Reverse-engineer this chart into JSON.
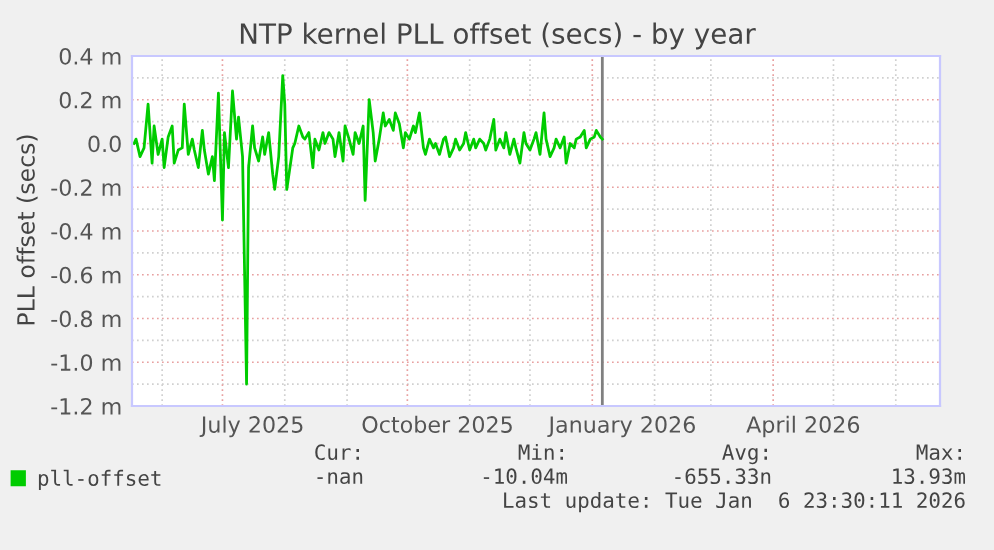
{
  "chart_data": {
    "type": "line",
    "title": "NTP kernel PLL offset (secs) - by year",
    "ylabel": "PLL offset (secs)",
    "x": [
      "2025-05-18",
      "2025-05-19",
      "2025-05-21",
      "2025-05-23",
      "2025-05-25",
      "2025-05-27",
      "2025-05-28",
      "2025-05-30",
      "2025-06-01",
      "2025-06-02",
      "2025-06-04",
      "2025-06-06",
      "2025-06-07",
      "2025-06-09",
      "2025-06-11",
      "2025-06-12",
      "2025-06-14",
      "2025-06-16",
      "2025-06-17",
      "2025-06-19",
      "2025-06-21",
      "2025-06-22",
      "2025-06-24",
      "2025-06-26",
      "2025-06-27",
      "2025-06-29",
      "2025-07-01",
      "2025-07-02",
      "2025-07-04",
      "2025-07-06",
      "2025-07-08",
      "2025-07-09",
      "2025-07-11",
      "2025-07-13",
      "2025-07-14",
      "2025-07-16",
      "2025-07-17",
      "2025-07-19",
      "2025-07-21",
      "2025-07-22",
      "2025-07-24",
      "2025-07-26",
      "2025-07-27",
      "2025-07-29",
      "2025-07-31",
      "2025-08-01",
      "2025-08-02",
      "2025-08-05",
      "2025-08-06",
      "2025-08-08",
      "2025-08-10",
      "2025-08-11",
      "2025-08-13",
      "2025-08-15",
      "2025-08-16",
      "2025-08-18",
      "2025-08-20",
      "2025-08-21",
      "2025-08-23",
      "2025-08-25",
      "2025-08-26",
      "2025-08-28",
      "2025-08-30",
      "2025-08-31",
      "2025-09-02",
      "2025-09-04",
      "2025-09-05",
      "2025-09-07",
      "2025-09-09",
      "2025-09-10",
      "2025-09-12",
      "2025-09-14",
      "2025-09-15",
      "2025-09-17",
      "2025-09-19",
      "2025-09-20",
      "2025-09-22",
      "2025-09-24",
      "2025-09-25",
      "2025-09-27",
      "2025-09-29",
      "2025-09-30",
      "2025-10-02",
      "2025-10-04",
      "2025-10-05",
      "2025-10-07",
      "2025-10-09",
      "2025-10-10",
      "2025-10-12",
      "2025-10-14",
      "2025-10-15",
      "2025-10-17",
      "2025-10-19",
      "2025-10-20",
      "2025-10-22",
      "2025-10-24",
      "2025-10-25",
      "2025-10-27",
      "2025-10-29",
      "2025-10-30",
      "2025-11-01",
      "2025-11-03",
      "2025-11-04",
      "2025-11-06",
      "2025-11-08",
      "2025-11-09",
      "2025-11-11",
      "2025-11-13",
      "2025-11-14",
      "2025-11-16",
      "2025-11-18",
      "2025-11-19",
      "2025-11-21",
      "2025-11-23",
      "2025-11-24",
      "2025-11-26",
      "2025-11-28",
      "2025-11-29",
      "2025-12-01",
      "2025-12-03",
      "2025-12-04",
      "2025-12-06",
      "2025-12-08",
      "2025-12-09",
      "2025-12-11",
      "2025-12-13",
      "2025-12-14",
      "2025-12-16",
      "2025-12-18",
      "2025-12-19",
      "2025-12-21",
      "2025-12-23",
      "2025-12-24",
      "2025-12-26",
      "2025-12-28",
      "2025-12-29",
      "2025-12-31",
      "2026-01-02",
      "2026-01-03",
      "2026-01-05",
      "2026-01-06"
    ],
    "series": [
      {
        "name": "pll-offset",
        "color": "#00cc00",
        "values": [
          0,
          0.02,
          -0.06,
          -0.02,
          0.18,
          -0.09,
          0.08,
          -0.05,
          0.02,
          -0.11,
          0.03,
          0.08,
          -0.09,
          -0.03,
          -0.02,
          0.18,
          -0.05,
          0.02,
          -0.03,
          -0.11,
          0.06,
          -0.03,
          -0.14,
          -0.06,
          -0.17,
          0.23,
          -0.35,
          0.05,
          -0.11,
          0.24,
          0.02,
          0.12,
          -0.06,
          -1.1,
          -0.11,
          0.08,
          -0.02,
          -0.08,
          0.03,
          -0.05,
          0.05,
          -0.14,
          -0.21,
          -0.06,
          0.31,
          0.18,
          -0.21,
          -0.02,
          0,
          0.08,
          0.03,
          0.02,
          0.05,
          -0.11,
          0.02,
          -0.03,
          0.05,
          0,
          0.05,
          0.02,
          -0.06,
          0.05,
          -0.08,
          0.08,
          0.02,
          -0.05,
          0.05,
          0,
          0.08,
          -0.26,
          0.2,
          0.05,
          -0.08,
          0.02,
          0.14,
          0.08,
          0.11,
          0.06,
          0.14,
          0.09,
          -0.02,
          0.05,
          0.02,
          0.08,
          0.05,
          0.14,
          -0.02,
          -0.05,
          0.02,
          -0.02,
          0,
          -0.05,
          0.02,
          0.03,
          -0.06,
          -0.02,
          0.02,
          -0.03,
          0,
          0.05,
          -0.03,
          0.02,
          -0.02,
          0.02,
          0,
          -0.03,
          0.02,
          0.11,
          -0.03,
          0.02,
          -0.02,
          0.05,
          -0.05,
          0.02,
          -0.02,
          -0.09,
          0.05,
          0,
          -0.03,
          0.02,
          0.05,
          -0.05,
          0.14,
          0.02,
          -0.06,
          -0.02,
          0.02,
          -0.02,
          0.03,
          -0.09,
          0,
          -0.02,
          0.02,
          0.03,
          0.06,
          -0.02,
          0.02,
          0.03,
          0.06,
          0.03,
          0.02
        ]
      }
    ],
    "xlim": [
      "2025-05-17",
      "2026-06-23"
    ],
    "xticks": [
      {
        "value": "2025-07-16",
        "label": "July 2025"
      },
      {
        "value": "2025-10-16",
        "label": "October 2025"
      },
      {
        "value": "2026-01-16",
        "label": "January 2026"
      },
      {
        "value": "2026-04-16",
        "label": "April 2026"
      }
    ],
    "ylim": [
      -1.2,
      0.4
    ],
    "yticks": [
      {
        "value": 0.4,
        "label": "0.4 m"
      },
      {
        "value": 0.2,
        "label": "0.2 m"
      },
      {
        "value": 0,
        "label": "0.0"
      },
      {
        "value": -0.2,
        "label": "-0.2 m"
      },
      {
        "value": -0.4,
        "label": "-0.4 m"
      },
      {
        "value": -0.6,
        "label": "-0.6 m"
      },
      {
        "value": -0.8,
        "label": "-0.8 m"
      },
      {
        "value": -1.0,
        "label": "-1.0 m"
      },
      {
        "value": -1.2,
        "label": "-1.2 m"
      }
    ],
    "ref_lines": [
      {
        "axis": "x",
        "value": "2026-01-06",
        "color": "#808080"
      }
    ],
    "grid": true,
    "legend": "bottom left",
    "annotations": [
      "Cur:",
      "Min:",
      "Avg:",
      "Max:",
      "-nan",
      "-10.04m",
      "-655.33n",
      "13.93m",
      "Last update: Tue Jan  6 23:30:11 2026"
    ]
  }
}
